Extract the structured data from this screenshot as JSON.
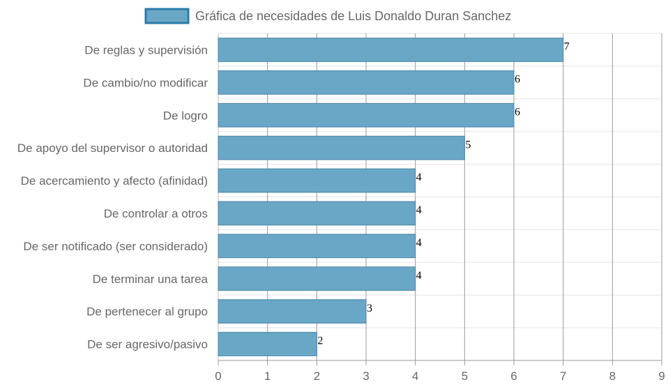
{
  "chart_data": {
    "type": "bar",
    "orientation": "horizontal",
    "title": "",
    "xlabel": "",
    "ylabel": "",
    "xlim": [
      0,
      9
    ],
    "x_ticks": [
      0,
      1,
      2,
      3,
      4,
      5,
      6,
      7,
      8,
      9
    ],
    "grid": true,
    "legend_position": "top",
    "bar_color": "#6aa6c6",
    "bar_border_color": "#4a86a8",
    "legend_box_color": "#2e7aa8",
    "categories": [
      "De reglas y supervisión",
      "De cambio/no modificar",
      "De logro",
      "De apoyo del supervisor o autoridad",
      "De acercamiento y afecto (afinidad)",
      "De controlar a otros",
      "De ser notificado (ser considerado)",
      "De terminar una tarea",
      "De pertenecer al grupo",
      "De ser agresivo/pasivo"
    ],
    "series": [
      {
        "name": "Gráfica de necesidades de Luis Donaldo Duran Sanchez",
        "values": [
          7,
          6,
          6,
          5,
          4,
          4,
          4,
          4,
          3,
          2
        ]
      }
    ]
  }
}
